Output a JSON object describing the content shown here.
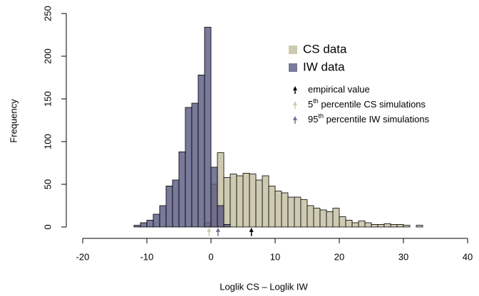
{
  "chart_data": {
    "type": "histogram",
    "xlabel": "Loglik CS – Loglik IW",
    "ylabel": "Frequency",
    "xlim": [
      -23.5,
      41.5
    ],
    "ylim": [
      -8,
      258
    ],
    "xticks": [
      -20,
      -10,
      0,
      10,
      20,
      30,
      40
    ],
    "yticks": [
      0,
      50,
      100,
      150,
      200,
      250
    ],
    "series": [
      {
        "name": "CS data",
        "color": "#cfcbb2",
        "bins": [
          -1,
          0,
          1,
          2,
          3,
          4,
          5,
          6,
          7,
          8,
          9,
          10,
          11,
          12,
          13,
          14,
          15,
          16,
          17,
          18,
          19,
          20,
          21,
          22,
          23,
          24,
          25,
          26,
          27,
          28,
          29,
          30,
          31,
          32,
          33
        ],
        "values": [
          5,
          50,
          87,
          58,
          62,
          60,
          63,
          62,
          55,
          60,
          48,
          42,
          40,
          35,
          35,
          32,
          25,
          22,
          20,
          18,
          22,
          12,
          8,
          5,
          7,
          5,
          3,
          3,
          4,
          3,
          3,
          2,
          0,
          2
        ]
      },
      {
        "name": "IW data",
        "color": "#585880",
        "bins": [
          -12,
          -11,
          -10,
          -9,
          -8,
          -7,
          -6,
          -5,
          -4,
          -3,
          -2,
          -1,
          0,
          1,
          2,
          3
        ],
        "values": [
          2,
          5,
          8,
          15,
          25,
          48,
          55,
          88,
          140,
          145,
          178,
          234,
          70,
          25,
          3
        ]
      }
    ],
    "annotations": [
      {
        "value": 6.3,
        "color": "#000000",
        "label": [
          "empirical value"
        ]
      },
      {
        "value": -0.3,
        "color": "#cfcbb2",
        "label": [
          "5",
          "th",
          " percentile CS simulations"
        ]
      },
      {
        "value": 1.1,
        "color": "#6e6e96",
        "label": [
          "95",
          "th",
          " percentile IW simulations"
        ]
      }
    ]
  }
}
